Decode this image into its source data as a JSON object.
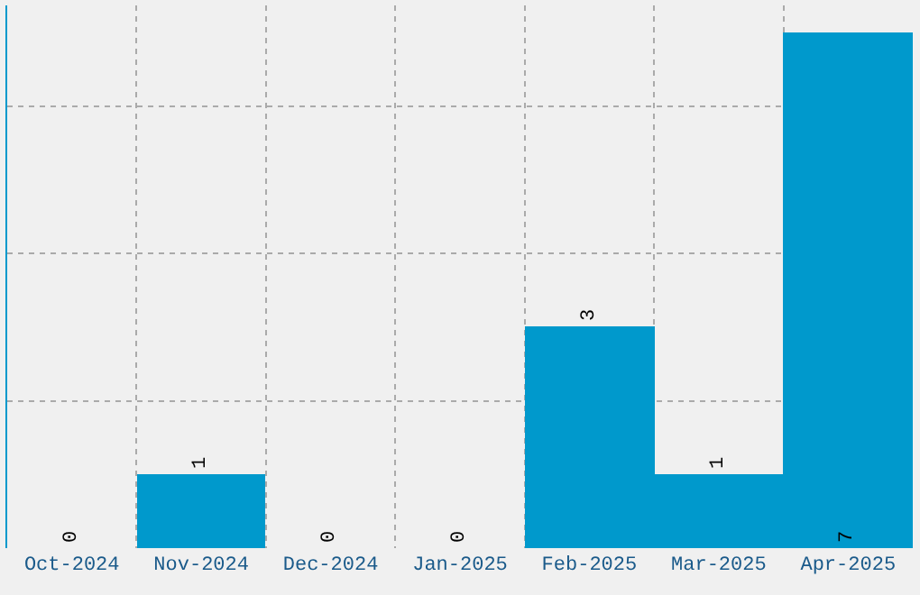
{
  "chart_data": {
    "type": "bar",
    "categories": [
      "Oct-2024",
      "Nov-2024",
      "Dec-2024",
      "Jan-2025",
      "Feb-2025",
      "Mar-2025",
      "Apr-2025"
    ],
    "values": [
      0,
      1,
      0,
      0,
      3,
      1,
      7
    ],
    "color": "#0099cc",
    "data_labels": true,
    "grid": true,
    "legend": false,
    "tick_labels": "x"
  }
}
